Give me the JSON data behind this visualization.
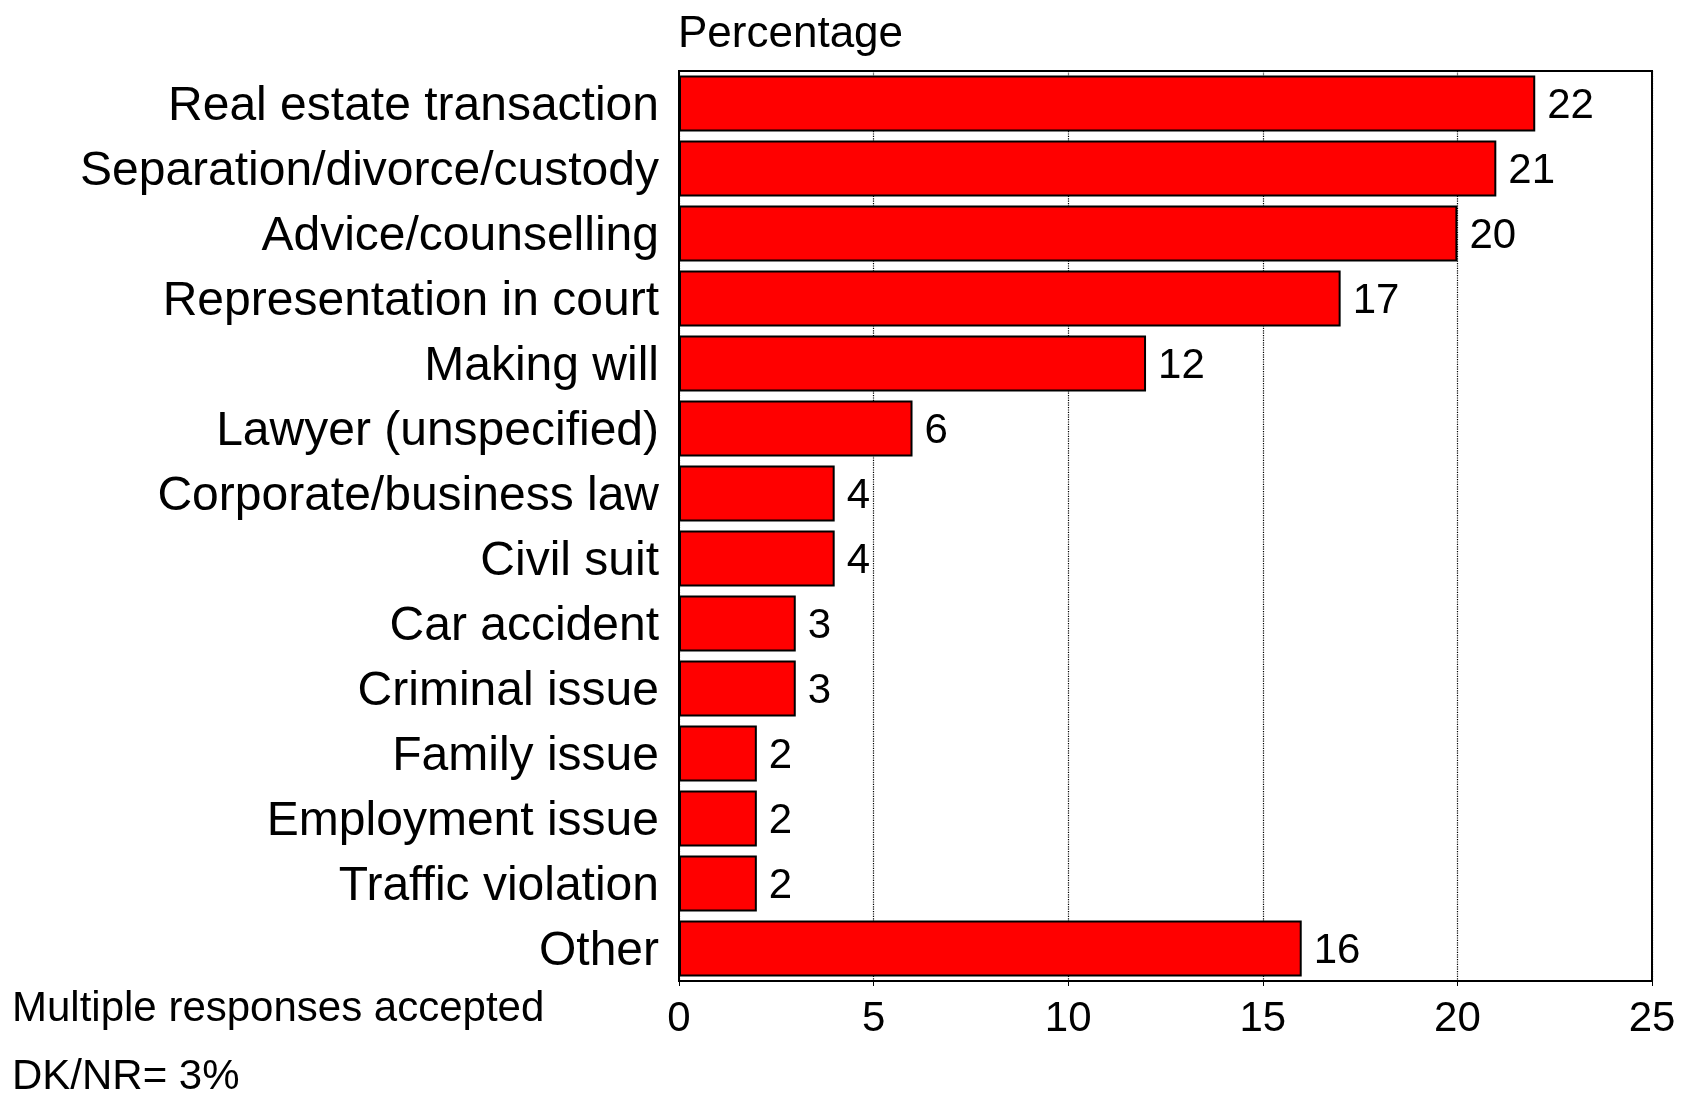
{
  "chart_data": {
    "type": "bar",
    "orientation": "horizontal",
    "title": "Percentage",
    "categories": [
      "Real estate transaction",
      "Separation/divorce/custody",
      "Advice/counselling",
      "Representation in court",
      "Making will",
      "Lawyer (unspecified)",
      "Corporate/business law",
      "Civil suit",
      "Car accident",
      "Criminal issue",
      "Family issue",
      "Employment issue",
      "Traffic violation",
      "Other"
    ],
    "values": [
      22,
      21,
      20,
      17,
      12,
      6,
      4,
      4,
      3,
      3,
      2,
      2,
      2,
      16
    ],
    "color": "#ff0000",
    "data_labels": true,
    "xlim": [
      0,
      25
    ],
    "xticks": [
      0,
      5,
      10,
      15,
      20,
      25
    ],
    "grid": "x",
    "annotations": [
      "Multiple responses accepted",
      "DK/NR= 3%"
    ]
  }
}
